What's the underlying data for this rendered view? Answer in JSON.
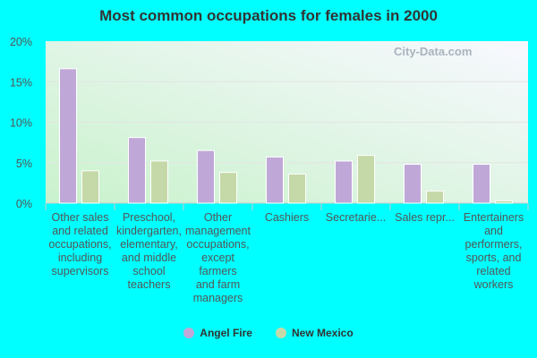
{
  "chart_data": {
    "type": "bar",
    "title": "Most common occupations for females in 2000",
    "categories": [
      [
        "Other sales",
        "and related",
        "occupations,",
        "including",
        "supervisors"
      ],
      [
        "Preschool,",
        "kindergarten,",
        "elementary,",
        "and middle",
        "school",
        "teachers"
      ],
      [
        "Other",
        "management",
        "occupations,",
        "except",
        "farmers",
        "and farm",
        "managers"
      ],
      [
        "Cashiers"
      ],
      [
        "Secretarie..."
      ],
      [
        "Sales repr..."
      ],
      [
        "Entertainers",
        "and",
        "performers,",
        "sports, and",
        "related",
        "workers"
      ]
    ],
    "series": [
      {
        "name": "Angel Fire",
        "color": "#bfa8d8",
        "values": [
          16.6,
          8.1,
          6.5,
          5.7,
          5.2,
          4.8,
          4.8
        ]
      },
      {
        "name": "New Mexico",
        "color": "#c5d9a8",
        "values": [
          4.0,
          5.2,
          3.8,
          3.6,
          5.9,
          1.5,
          0.3
        ]
      }
    ],
    "ylim": [
      0,
      20
    ],
    "yticks": [
      "0%",
      "5%",
      "10%",
      "15%",
      "20%"
    ],
    "grid": true,
    "legend": "bottom"
  },
  "watermark": "City-Data.com"
}
